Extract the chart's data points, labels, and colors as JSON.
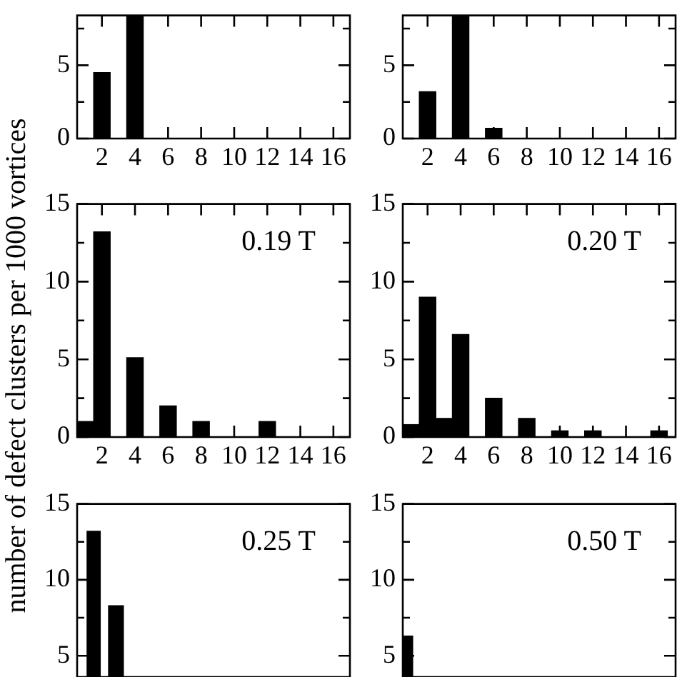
{
  "chart_data": [
    {
      "type": "histogram",
      "bins": [
        0.5,
        1.5,
        2.5,
        3.5,
        4.5,
        5.5,
        6.5,
        7.5,
        8.5,
        9.5,
        10.5,
        11.5,
        12.5,
        13.5,
        14.5,
        15.5,
        16.5
      ],
      "values": [
        0,
        4.5,
        0,
        8.4,
        0,
        0,
        0,
        0,
        0,
        0,
        0,
        0,
        0,
        0,
        0,
        0
      ],
      "color": "#000000",
      "xlim": [
        0.5,
        17
      ],
      "xticks": [
        2,
        4,
        6,
        8,
        10,
        12,
        14,
        16
      ],
      "ylim": [
        0,
        8.4
      ],
      "yticks": [
        0,
        {
          "value": 2.5,
          "label": null
        },
        5,
        {
          "value": 7.5,
          "label": null
        }
      ],
      "grid": false,
      "legend": false
    },
    {
      "type": "histogram",
      "bins": [
        0.5,
        1.5,
        2.5,
        3.5,
        4.5,
        5.5,
        6.5,
        7.5,
        8.5,
        9.5,
        10.5,
        11.5,
        12.5,
        13.5,
        14.5,
        15.5,
        16.5
      ],
      "values": [
        0,
        3.2,
        0,
        8.4,
        0,
        0.7,
        0,
        0,
        0,
        0,
        0,
        0,
        0,
        0,
        0,
        0
      ],
      "color": "#000000",
      "xlim": [
        0.5,
        17
      ],
      "xticks": [
        2,
        4,
        6,
        8,
        10,
        12,
        14,
        16
      ],
      "ylim": [
        0,
        8.4
      ],
      "yticks": [
        0,
        {
          "value": 2.5,
          "label": null
        },
        5,
        {
          "value": 7.5,
          "label": null
        }
      ],
      "grid": false,
      "legend": false
    },
    {
      "type": "histogram",
      "ylabel": "number of defect clusters per 1000 vortices",
      "annotations": [
        "0.19 T"
      ],
      "bins": [
        0.5,
        1.5,
        2.5,
        3.5,
        4.5,
        5.5,
        6.5,
        7.5,
        8.5,
        9.5,
        10.5,
        11.5,
        12.5,
        13.5,
        14.5,
        15.5,
        16.5
      ],
      "values": [
        1.0,
        13.2,
        0,
        5.1,
        0,
        2.0,
        0,
        1.0,
        0,
        0,
        0,
        1.0,
        0,
        0,
        0,
        0
      ],
      "color": "#000000",
      "xlim": [
        0.5,
        17
      ],
      "xticks": [
        2,
        4,
        6,
        8,
        10,
        12,
        14,
        16
      ],
      "ylim": [
        0,
        15
      ],
      "yticks": [
        0,
        {
          "value": 2.5,
          "label": null
        },
        5,
        {
          "value": 7.5,
          "label": null
        },
        10,
        {
          "value": 12.5,
          "label": null
        },
        15
      ],
      "grid": false,
      "legend": false
    },
    {
      "type": "histogram",
      "annotations": [
        "0.20 T"
      ],
      "bins": [
        0.5,
        1.5,
        2.5,
        3.5,
        4.5,
        5.5,
        6.5,
        7.5,
        8.5,
        9.5,
        10.5,
        11.5,
        12.5,
        13.5,
        14.5,
        15.5,
        16.5
      ],
      "values": [
        0.8,
        9.0,
        1.2,
        6.6,
        0,
        2.5,
        0,
        1.2,
        0,
        0.4,
        0,
        0.4,
        0,
        0,
        0,
        0.4
      ],
      "color": "#000000",
      "xlim": [
        0.5,
        17
      ],
      "xticks": [
        2,
        4,
        6,
        8,
        10,
        12,
        14,
        16
      ],
      "ylim": [
        0,
        15
      ],
      "yticks": [
        0,
        {
          "value": 2.5,
          "label": null
        },
        5,
        {
          "value": 7.5,
          "label": null
        },
        10,
        {
          "value": 12.5,
          "label": null
        },
        15
      ],
      "grid": false,
      "legend": false
    },
    {
      "type": "histogram",
      "annotations": [
        "0.25 T"
      ],
      "bins": [
        1.1,
        1.9,
        2.4,
        3.3
      ],
      "values": [
        13.2,
        null,
        8.3
      ],
      "color": "#000000",
      "xlim": [
        0.5,
        17
      ],
      "ylim": [
        3.6,
        15
      ],
      "yticks": [
        5,
        {
          "value": 7.5,
          "label": null
        },
        10,
        {
          "value": 12.5,
          "label": null
        },
        15
      ],
      "tick_labels": "y",
      "grid": false,
      "legend": false
    },
    {
      "type": "histogram",
      "annotations": [
        "0.50 T"
      ],
      "bins": [
        0.5,
        1.1
      ],
      "values": [
        6.3
      ],
      "color": "#000000",
      "xlim": [
        0.5,
        17
      ],
      "ylim": [
        3.6,
        15
      ],
      "yticks": [
        5,
        {
          "value": 7.5,
          "label": null
        },
        10,
        {
          "value": 12.5,
          "label": null
        },
        15
      ],
      "tick_labels": "y",
      "grid": false,
      "legend": false
    }
  ]
}
